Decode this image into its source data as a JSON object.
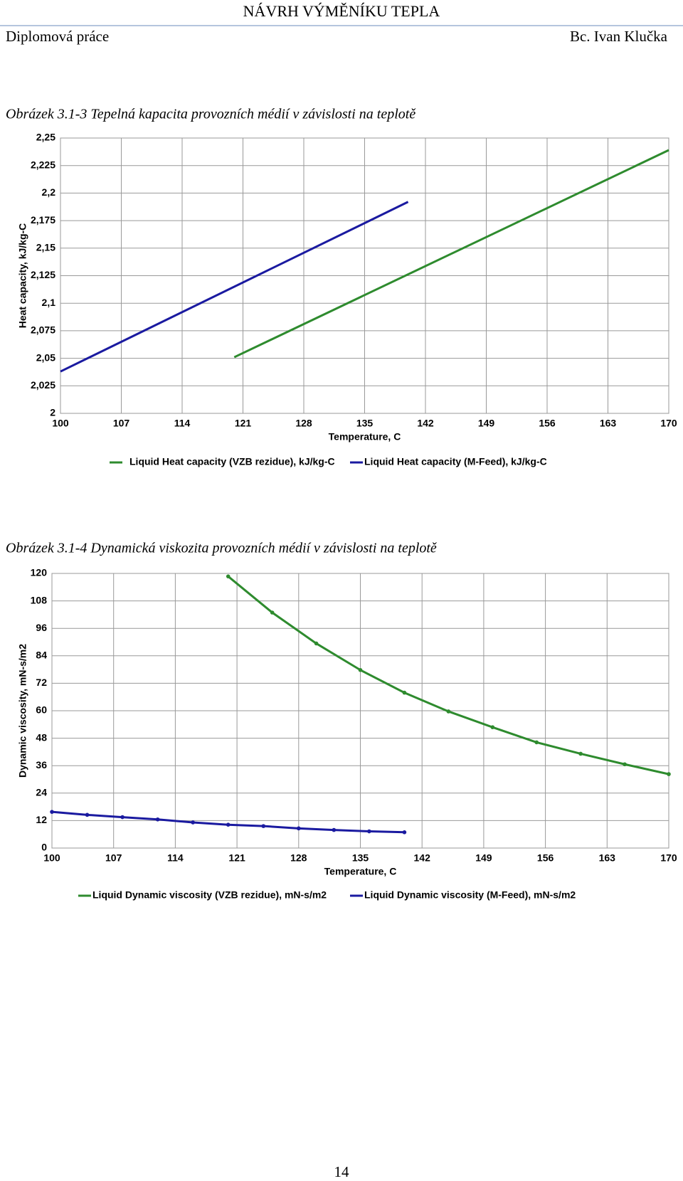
{
  "header": {
    "title": "NÁVRH VÝMĚNÍKU TEPLA",
    "left": "Diplomová práce",
    "right": "Bc. Ivan Klučka"
  },
  "chart_data": [
    {
      "type": "line",
      "caption": "Obrázek 3.1-3 Tepelná kapacita provozních médií v závislosti na teplotě",
      "x_label": "Temperature, C",
      "y_label": "Heat capacity, kJ/kg-C",
      "xlim": [
        100,
        170
      ],
      "xticks": [
        100,
        107,
        114,
        121,
        128,
        135,
        142,
        149,
        156,
        163,
        170
      ],
      "ylim": [
        2,
        2.25
      ],
      "yticks": [
        2,
        {
          "value": 2.025,
          "label": "2,025"
        },
        {
          "value": 2.05,
          "label": "2,05"
        },
        {
          "value": 2.075,
          "label": "2,075"
        },
        {
          "value": 2.1,
          "label": "2,1"
        },
        {
          "value": 2.125,
          "label": "2,125"
        },
        {
          "value": 2.15,
          "label": "2,15"
        },
        {
          "value": 2.175,
          "label": "2,175"
        },
        {
          "value": 2.2,
          "label": "2,2"
        },
        {
          "value": 2.225,
          "label": "2,225"
        },
        {
          "value": 2.25,
          "label": "2,25"
        }
      ],
      "grid": true,
      "markers": false,
      "series": [
        {
          "name": "Liquid Heat capacity (VZB rezidue), kJ/kg-C",
          "color": "#2e8b2e",
          "x": [
            120,
            170
          ],
          "values": [
            2.051,
            2.239
          ]
        },
        {
          "name": "Liquid Heat capacity (M-Feed), kJ/kg-C",
          "color": "#1a1aa0",
          "x": [
            100,
            140
          ],
          "values": [
            2.038,
            2.192
          ]
        }
      ]
    },
    {
      "type": "line",
      "caption": "Obrázek 3.1-4 Dynamická viskozita provozních médií v závislosti na teplotě",
      "x_label": "Temperature, C",
      "y_label": "Dynamic viscosity, mN-s/m2",
      "xlim": [
        100,
        170
      ],
      "xticks": [
        100,
        107,
        114,
        121,
        128,
        135,
        142,
        149,
        156,
        163,
        170
      ],
      "ylim": [
        0,
        120
      ],
      "yticks": [
        0,
        12,
        24,
        36,
        48,
        60,
        72,
        84,
        96,
        108,
        120
      ],
      "grid": true,
      "markers": true,
      "series": [
        {
          "name": "Liquid Dynamic viscosity (VZB rezidue), mN-s/m2",
          "color": "#2e8b2e",
          "x": [
            120,
            125,
            130,
            135,
            140,
            145,
            150,
            155,
            160,
            165,
            170
          ],
          "values": [
            118.7,
            102.9,
            89.4,
            77.8,
            67.9,
            59.7,
            52.8,
            46.2,
            41.2,
            36.6,
            32.3
          ]
        },
        {
          "name": "Liquid Dynamic viscosity (M-Feed), mN-s/m2",
          "color": "#1a1aa0",
          "x": [
            100,
            104,
            108,
            112,
            116,
            120,
            124,
            128,
            132,
            136,
            140
          ],
          "values": [
            15.8,
            14.5,
            13.5,
            12.5,
            11.2,
            10.2,
            9.6,
            8.6,
            7.9,
            7.3,
            6.9
          ]
        }
      ]
    }
  ],
  "page_number": 14
}
